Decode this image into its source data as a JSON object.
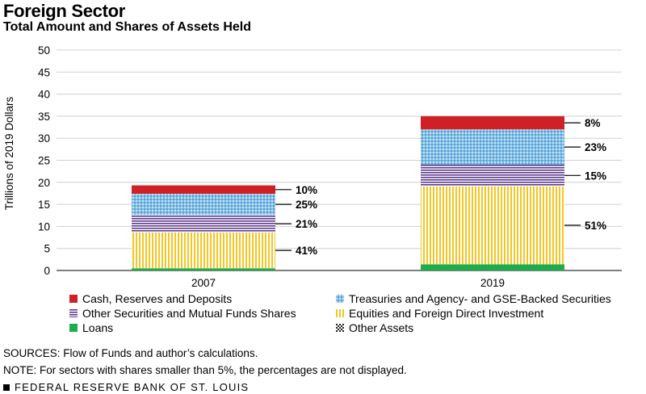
{
  "title": "Foreign Sector",
  "subtitle": "Total Amount and Shares of Assets Held",
  "chart_data": {
    "type": "bar",
    "stacked": true,
    "title": "Foreign Sector",
    "subtitle": "Total Amount and Shares of Assets Held",
    "xlabel": "",
    "ylabel": "Trillions of 2019 Dollars",
    "ylim": [
      0,
      50
    ],
    "yticks": [
      0,
      5,
      10,
      15,
      20,
      25,
      30,
      35,
      40,
      45,
      50
    ],
    "grid": true,
    "categories": [
      "2007",
      "2019"
    ],
    "series": [
      {
        "name": "Loans",
        "key": "loans",
        "color": "#1fad4b",
        "pattern": "solid",
        "values": [
          0.5,
          1.4
        ],
        "labels": [
          "",
          ""
        ]
      },
      {
        "name": "Equities and Foreign Direct Investment",
        "key": "equities",
        "color": "#f3c623",
        "pattern": "vstripes",
        "values": [
          8.1,
          17.7
        ],
        "labels": [
          "41%",
          "51%"
        ]
      },
      {
        "name": "Other Securities and Mutual Funds Shares",
        "key": "other_sec",
        "color": "#5e3b8c",
        "pattern": "hstripes",
        "values": [
          4.0,
          4.9
        ],
        "labels": [
          "21%",
          "15%"
        ]
      },
      {
        "name": "Treasuries and Agency- and GSE-Backed Securities",
        "key": "treasuries",
        "color": "#5aa7dc",
        "pattern": "dots",
        "values": [
          4.8,
          8.0
        ],
        "labels": [
          "25%",
          "23%"
        ]
      },
      {
        "name": "Cash, Reserves and Deposits",
        "key": "cash",
        "color": "#d02027",
        "pattern": "solid",
        "values": [
          1.9,
          3.0
        ],
        "labels": [
          "10%",
          "8%"
        ]
      },
      {
        "name": "Other Assets",
        "key": "other_assets",
        "color": "#222222",
        "pattern": "checker",
        "values": [
          0,
          0
        ],
        "labels": [
          "",
          ""
        ]
      }
    ]
  },
  "legend": [
    {
      "label": "Cash, Reserves and Deposits",
      "pattern": "solid",
      "color": "#d02027"
    },
    {
      "label": "Treasuries and Agency- and GSE-Backed Securities",
      "pattern": "dots",
      "color": "#5aa7dc"
    },
    {
      "label": "Other Securities and Mutual Funds Shares",
      "pattern": "hstripes",
      "color": "#5e3b8c"
    },
    {
      "label": "Equities and Foreign Direct Investment",
      "pattern": "vstripes",
      "color": "#f3c623"
    },
    {
      "label": "Loans",
      "pattern": "solid",
      "color": "#1fad4b"
    },
    {
      "label": "Other Assets",
      "pattern": "checker",
      "color": "#222222"
    }
  ],
  "sources": "SOURCES: Flow of Funds and author’s calculations.",
  "note": "NOTE: For sectors with shares smaller than 5%, the percentages are not displayed.",
  "footer": "FEDERAL RESERVE BANK OF ST. LOUIS"
}
